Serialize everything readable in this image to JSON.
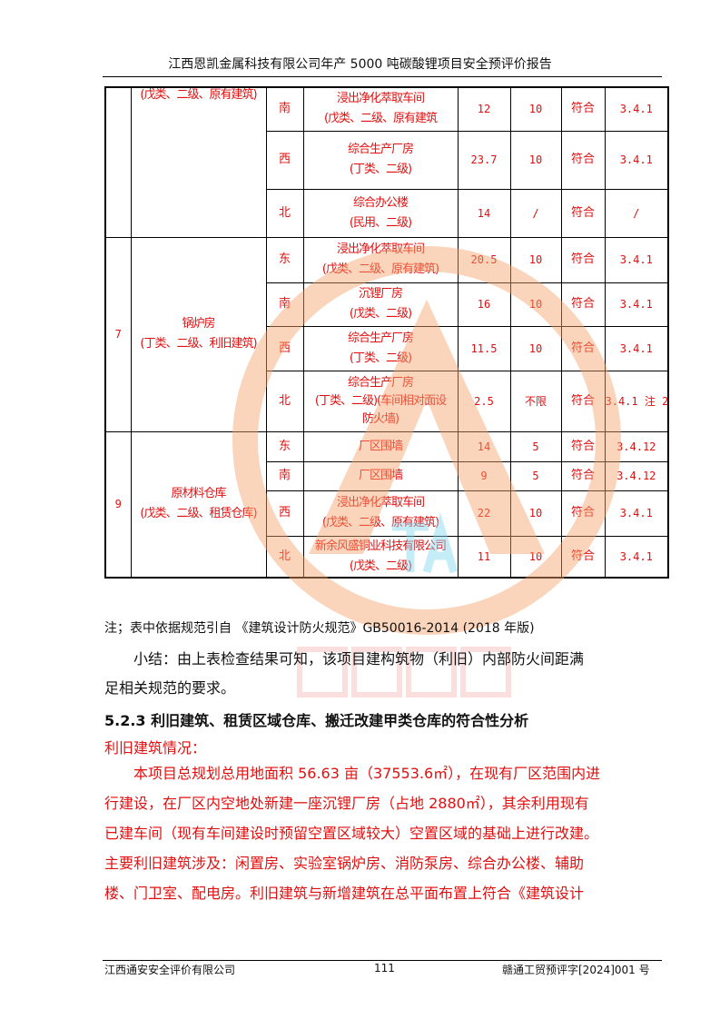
{
  "header": {
    "title": "江西恩凯金属科技有限公司年产 5000 吨碳酸锂项目安全预评价报告"
  },
  "table": {
    "groups": [
      {
        "no": "",
        "name": "(戊类、二级、原有建筑)",
        "rows": [
          {
            "dir": "南",
            "target": [
              "浸出净化萃取车间",
              "(戊类、二级、原有建筑"
            ],
            "actual": "12",
            "required": "10",
            "result": "符合",
            "clause": "3.4.1"
          },
          {
            "dir": "西",
            "target": [
              "综合生产厂房",
              "(丁类、二级)"
            ],
            "actual": "23.7",
            "required": "10",
            "result": "符合",
            "clause": "3.4.1"
          },
          {
            "dir": "北",
            "target": [
              "综合办公楼",
              "(民用、二级)"
            ],
            "actual": "14",
            "required": "/",
            "result": "符合",
            "clause": "/"
          }
        ]
      },
      {
        "no": "7",
        "name": "锅炉房\n(丁类、二级、利旧建筑)",
        "rows": [
          {
            "dir": "东",
            "target": [
              "浸出净化萃取车间",
              "(戊类、二级、原有建筑)"
            ],
            "actual": "20.5",
            "required": "10",
            "result": "符合",
            "clause": "3.4.1"
          },
          {
            "dir": "南",
            "target": [
              "沉锂厂房",
              "(戊类、二级)"
            ],
            "actual": "16",
            "required": "10",
            "result": "符合",
            "clause": "3.4.1"
          },
          {
            "dir": "西",
            "target": [
              "综合生产厂房",
              "(丁类、二级)"
            ],
            "actual": "11.5",
            "required": "10",
            "result": "符合",
            "clause": "3.4.1"
          },
          {
            "dir": "北",
            "target": [
              "综合生产厂房",
              "(丁类、二级)(车间相对面设",
              "防火墙)"
            ],
            "actual": "2.5",
            "required": "不限",
            "result": "符合",
            "clause": "3.4.1 注 2"
          }
        ]
      },
      {
        "no": "9",
        "name": "原材料仓库\n(戊类、二级、租赁仓库)",
        "rows": [
          {
            "dir": "东",
            "target": [
              "厂区围墙"
            ],
            "actual": "14",
            "required": "5",
            "result": "符合",
            "clause": "3.4.12"
          },
          {
            "dir": "南",
            "target": [
              "厂区围墙"
            ],
            "actual": "9",
            "required": "5",
            "result": "符合",
            "clause": "3.4.12"
          },
          {
            "dir": "西",
            "target": [
              "浸出净化萃取车间",
              "(戊类、二级、原有建筑)"
            ],
            "actual": "22",
            "required": "10",
            "result": "符合",
            "clause": "3.4.1"
          },
          {
            "dir": "北",
            "target": [
              "新余风盛铜业科技有限公司",
              "(戊类、二级)"
            ],
            "actual": "11",
            "required": "10",
            "result": "符合",
            "clause": "3.4.1"
          }
        ]
      }
    ]
  },
  "body": {
    "note": "注；表中依据规范引自 《建筑设计防火规范》GB50016-2014 (2018 年版)",
    "summary": [
      "　　小结：由上表检查结果可知，该项目建构筑物（利旧）内部防火间距满",
      "足相关规范的要求。"
    ],
    "heading": "5.2.3 利旧建筑、租赁区域仓库、搬迁改建甲类仓库的符合性分析",
    "subheading": "利旧建筑情况：",
    "paragraph": [
      "　　本项目总规划总用地面积 56.63 亩（37553.6㎡），在现有厂区范围内进",
      "行建设，在厂区内空地处新建一座沉锂厂房（占地 2880㎡），其余利用现有",
      "已建车间（现有车间建设时预留空置区域较大）空置区域的基础上进行改建。",
      "主要利旧建筑涉及：闲置房、实验室锅炉房、消防泵房、综合办公楼、辅助",
      "楼、门卫室、配电房。利旧建筑与新增建筑在总平面布置上符合《建筑设计"
    ]
  },
  "watermark": {
    "text": "江西通安",
    "logo_text": "TA",
    "colors": {
      "circle": "#f5a26b",
      "text": "#f08080",
      "logo": "#7fd8f0"
    }
  },
  "footer": {
    "left": "江西通安安全评价有限公司",
    "page": "111",
    "right": "赣通工贸预评字[2024]001 号"
  }
}
